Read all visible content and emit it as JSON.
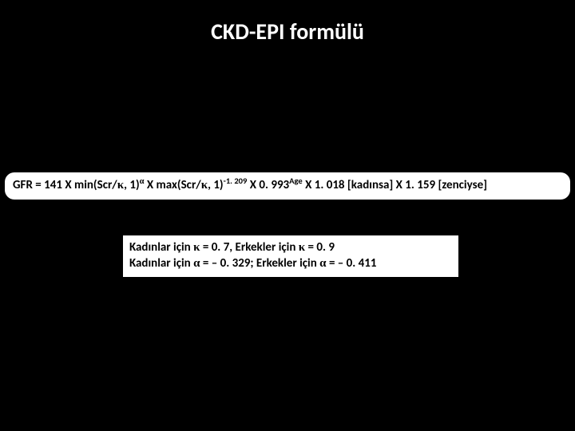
{
  "title": "CKD-EPI formülü",
  "formula": {
    "prefix": "GFR = 141 X min(Scr/",
    "kappa1": "κ",
    "mid1": ", 1)",
    "sup_alpha": "α",
    "mid2": " X max(Scr/",
    "kappa2": "κ",
    "mid3": ", 1)",
    "sup_exp1": "-1. 209",
    "mid4": " X 0. 993",
    "sup_age": "Age",
    "mid5": " X 1. 018 [kadınsa] X 1. 159 [zenciyse]"
  },
  "params": {
    "line1_a": "Kadınlar için ",
    "line1_k1": "κ",
    "line1_b": " = 0. 7, Erkekler için ",
    "line1_k2": "κ",
    "line1_c": " = 0. 9",
    "line2_a": "Kadınlar için ",
    "line2_al1": "α",
    "line2_b": " = – 0. 329; Erkekler için ",
    "line2_al2": "α",
    "line2_c": " = – 0. 411"
  },
  "colors": {
    "background": "#000000",
    "box_bg": "#ffffff",
    "text_light": "#ffffff",
    "text_dark": "#000000"
  }
}
